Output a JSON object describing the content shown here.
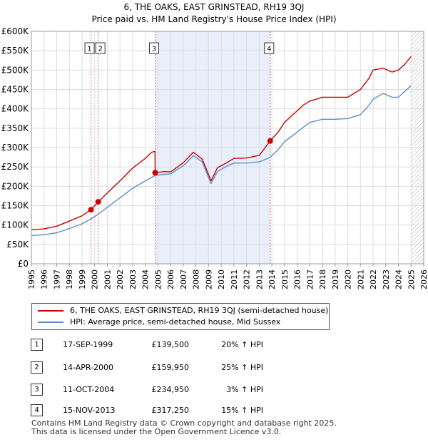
{
  "title_line1": "6, THE OAKS, EAST GRINSTEAD, RH19 3QJ",
  "title_line2": "Price paid vs. HM Land Registry's House Price Index (HPI)",
  "chart_data": {
    "type": "line",
    "title": "Price paid vs. HM Land Registry's House Price Index (HPI)",
    "xlabel": "",
    "ylabel": "",
    "xlim": [
      1995,
      2026
    ],
    "ylim": [
      0,
      600000
    ],
    "y_ticks": [
      0,
      50000,
      100000,
      150000,
      200000,
      250000,
      300000,
      350000,
      400000,
      450000,
      500000,
      550000,
      600000
    ],
    "y_tick_labels": [
      "£0",
      "£50K",
      "£100K",
      "£150K",
      "£200K",
      "£250K",
      "£300K",
      "£350K",
      "£400K",
      "£450K",
      "£500K",
      "£550K",
      "£600K"
    ],
    "x_ticks": [
      1995,
      1996,
      1997,
      1998,
      1999,
      2000,
      2001,
      2002,
      2003,
      2004,
      2005,
      2006,
      2007,
      2008,
      2009,
      2010,
      2011,
      2012,
      2013,
      2014,
      2015,
      2016,
      2017,
      2018,
      2019,
      2020,
      2021,
      2022,
      2023,
      2024,
      2025,
      2026
    ],
    "x_tick_labels": [
      "1995",
      "1996",
      "1997",
      "1998",
      "1999",
      "2000",
      "2001",
      "2002",
      "2003",
      "2004",
      "2005",
      "2006",
      "2007",
      "2008",
      "2009",
      "2010",
      "2011",
      "2012",
      "2013",
      "2014",
      "2015",
      "2016",
      "2017",
      "2018",
      "2019",
      "2020",
      "2021",
      "2022",
      "2023",
      "2024",
      "2025",
      "2026"
    ],
    "grid": true,
    "shaded_range": [
      2004.78,
      2013.87
    ],
    "hatched_after": 2025.0,
    "series": [
      {
        "name": "6, THE OAKS, EAST GRINSTEAD, RH19 3QJ (semi-detached house)",
        "color": "#cc0000",
        "x": [
          1995.0,
          1996.0,
          1997.0,
          1998.0,
          1999.0,
          1999.71,
          2000.28,
          2001.0,
          2002.0,
          2003.0,
          2004.0,
          2004.5,
          2004.77,
          2004.78,
          2005.5,
          2006.0,
          2007.0,
          2007.8,
          2008.5,
          2009.2,
          2009.7,
          2010.5,
          2011.0,
          2012.0,
          2013.0,
          2013.87,
          2014.5,
          2015.0,
          2016.0,
          2016.5,
          2017.0,
          2018.0,
          2019.0,
          2020.0,
          2021.0,
          2021.7,
          2022.0,
          2022.8,
          2023.5,
          2024.0,
          2024.5,
          2025.0
        ],
        "y": [
          88000,
          90000,
          97000,
          110000,
          124000,
          139500,
          159950,
          183000,
          214000,
          247000,
          272000,
          288000,
          290000,
          234950,
          238000,
          237000,
          261000,
          288000,
          270000,
          214000,
          248000,
          262000,
          272000,
          273000,
          280000,
          317250,
          340000,
          365000,
          395000,
          410000,
          420000,
          430000,
          430000,
          430000,
          450000,
          480000,
          500000,
          505000,
          495000,
          500000,
          515000,
          535000
        ]
      },
      {
        "name": "HPI: Average price, semi-detached house, Mid Sussex",
        "color": "#5b8ec4",
        "x": [
          1995.0,
          1996.0,
          1997.0,
          1998.0,
          1999.0,
          1999.71,
          2000.28,
          2001.0,
          2002.0,
          2003.0,
          2004.0,
          2004.78,
          2005.5,
          2006.0,
          2007.0,
          2007.8,
          2008.5,
          2009.2,
          2009.7,
          2010.5,
          2011.0,
          2012.0,
          2013.0,
          2013.87,
          2014.5,
          2015.0,
          2016.0,
          2016.5,
          2017.0,
          2018.0,
          2019.0,
          2020.0,
          2021.0,
          2021.7,
          2022.0,
          2022.8,
          2023.5,
          2024.0,
          2024.5,
          2025.0
        ],
        "y": [
          73000,
          75000,
          80000,
          91000,
          103000,
          116000,
          128000,
          146000,
          170000,
          195000,
          214000,
          228000,
          231000,
          232000,
          253000,
          279000,
          263000,
          207000,
          238000,
          253000,
          260000,
          260000,
          263000,
          275000,
          295000,
          315000,
          340000,
          353000,
          365000,
          373000,
          373000,
          375000,
          385000,
          410000,
          425000,
          440000,
          430000,
          430000,
          445000,
          460000
        ]
      }
    ],
    "sale_markers": [
      {
        "label": "1",
        "x": 1999.71,
        "y": 139500
      },
      {
        "label": "2",
        "x": 2000.28,
        "y": 159950
      },
      {
        "label": "3",
        "x": 2004.78,
        "y": 234950
      },
      {
        "label": "4",
        "x": 2013.87,
        "y": 317250
      }
    ]
  },
  "legend": [
    {
      "label": "6, THE OAKS, EAST GRINSTEAD, RH19 3QJ (semi-detached house)",
      "color": "#cc0000"
    },
    {
      "label": "HPI: Average price, semi-detached house, Mid Sussex",
      "color": "#5b8ec4"
    }
  ],
  "transactions": [
    {
      "num": "1",
      "date": "17-SEP-1999",
      "price": "£139,500",
      "hpi": "20% ↑ HPI"
    },
    {
      "num": "2",
      "date": "14-APR-2000",
      "price": "£159,950",
      "hpi": "25% ↑ HPI"
    },
    {
      "num": "3",
      "date": "11-OCT-2004",
      "price": "£234,950",
      "hpi": "3% ↑ HPI"
    },
    {
      "num": "4",
      "date": "15-NOV-2013",
      "price": "£317,250",
      "hpi": "15% ↑ HPI"
    }
  ],
  "footer_line1": "Contains HM Land Registry data © Crown copyright and database right 2025.",
  "footer_line2": "This data is licensed under the Open Government Licence v3.0."
}
